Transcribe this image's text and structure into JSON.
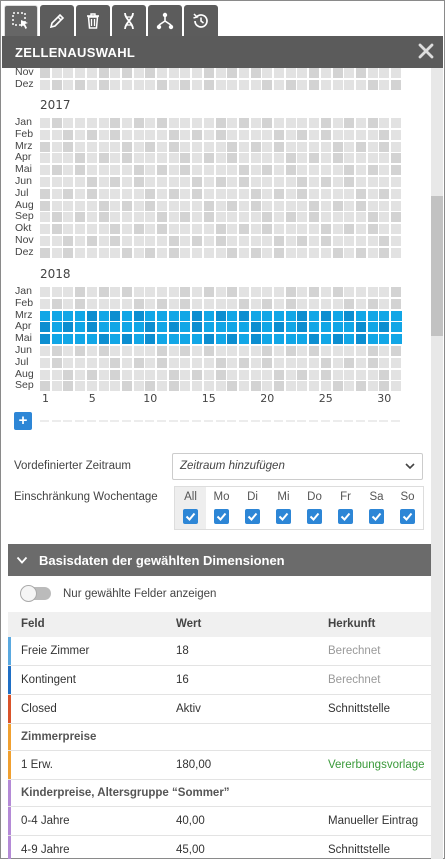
{
  "header": {
    "title": "ZELLENAUSWAHL"
  },
  "toolbar": {
    "tools": [
      "select-cells-icon",
      "pencil-icon",
      "trash-icon",
      "dna-icon",
      "hierarchy-icon",
      "history-icon"
    ]
  },
  "calendar": {
    "prev_year_tail": [
      "Nov",
      "Dez"
    ],
    "year_2017": "2017",
    "months_2017": [
      "Jan",
      "Feb",
      "Mrz",
      "Apr",
      "Mai",
      "Jun",
      "Jul",
      "Aug",
      "Sep",
      "Okt",
      "Nov",
      "Dez"
    ],
    "year_2018": "2018",
    "months_2018": [
      "Jan",
      "Feb",
      "Mrz",
      "Apr",
      "Mai",
      "Jun",
      "Jul",
      "Aug",
      "Sep"
    ],
    "selected_months_2018": [
      "Mrz",
      "Apr",
      "Mai"
    ],
    "day_labels": [
      "1",
      "5",
      "10",
      "15",
      "20",
      "25",
      "30"
    ],
    "add_label": "+"
  },
  "filters": {
    "period_label": "Vordefinierter Zeitraum",
    "period_value": "Zeitraum hinzufügen",
    "weekday_label": "Einschränkung Wochentage",
    "weekdays": [
      "All",
      "Mo",
      "Di",
      "Mi",
      "Do",
      "Fr",
      "Sa",
      "So"
    ]
  },
  "basisdaten": {
    "title": "Basisdaten der gewählten Dimensionen",
    "toggle_label": "Nur gewählte Felder anzeigen",
    "columns": [
      "Feld",
      "Wert",
      "Herkunft"
    ],
    "rows": [
      {
        "feld": "Freie Zimmer",
        "wert": "18",
        "herkunft": "Berechnet",
        "color": "#5aa9e0",
        "herkunft_color": "#999999"
      },
      {
        "feld": "Kontingent",
        "wert": "16",
        "herkunft": "Berechnet",
        "color": "#1f6fc5",
        "herkunft_color": "#999999"
      },
      {
        "feld": "Closed",
        "wert": "Aktiv",
        "herkunft": "Schnittstelle",
        "color": "#d9532a",
        "herkunft_color": "#333333"
      },
      {
        "feld": "Zimmerpreise",
        "wert": "",
        "herkunft": "",
        "color": "#f0a030",
        "group": true
      },
      {
        "feld": "1 Erw.",
        "wert": "180,00",
        "herkunft": "Vererbungsvorlage",
        "color": "#f0a030",
        "herkunft_color": "#3a9a3a"
      },
      {
        "feld": "Kinderpreise, Altersgruppe “Sommer”",
        "wert": "",
        "herkunft": "",
        "color": "#b48ad6",
        "group": true
      },
      {
        "feld": "0-4 Jahre",
        "wert": "40,00",
        "herkunft": "Manueller Eintrag",
        "color": "#b48ad6",
        "herkunft_color": "#333333"
      },
      {
        "feld": "4-9 Jahre",
        "wert": "45,00",
        "herkunft": "Schnittstelle",
        "color": "#b48ad6",
        "herkunft_color": "#333333"
      }
    ]
  }
}
